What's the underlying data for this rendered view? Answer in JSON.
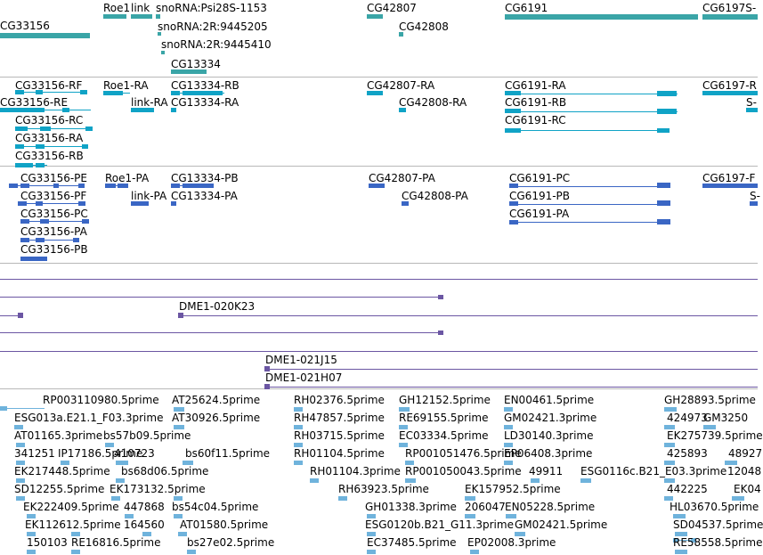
{
  "colors": {
    "gene": "#3aa5a7",
    "mrna": "#10a3c6",
    "cds": "#3a66c4",
    "clone": "#6b56a3",
    "est": "#6fb3dc",
    "separator": "#b8b8b8"
  },
  "tracks": [
    {
      "id": "genes",
      "colorKey": "gene",
      "items": [
        {
          "label": "CG33156"
        },
        {
          "label": "Roe1"
        },
        {
          "label": "link"
        },
        {
          "label": "snoRNA:Psi28S-1153"
        },
        {
          "label": "snoRNA:2R:9445205"
        },
        {
          "label": "snoRNA:2R:9445410"
        },
        {
          "label": "CG13334"
        },
        {
          "label": "CG42807"
        },
        {
          "label": "CG42808"
        },
        {
          "label": "CG6191"
        },
        {
          "label": "CG6197S-"
        }
      ]
    },
    {
      "id": "transcripts",
      "colorKey": "mrna",
      "items": [
        {
          "label": "CG33156-RF"
        },
        {
          "label": "CG33156-RE"
        },
        {
          "label": "CG33156-RC"
        },
        {
          "label": "CG33156-RA"
        },
        {
          "label": "CG33156-RB"
        },
        {
          "label": "Roe1-RA"
        },
        {
          "label": "link-RA"
        },
        {
          "label": "CG13334-RB"
        },
        {
          "label": "CG13334-RA"
        },
        {
          "label": "CG42807-RA"
        },
        {
          "label": "CG42808-RA"
        },
        {
          "label": "CG6191-RA"
        },
        {
          "label": "CG6191-RB"
        },
        {
          "label": "CG6191-RC"
        },
        {
          "label": "CG6197-R"
        },
        {
          "label": "S-"
        }
      ]
    },
    {
      "id": "proteins",
      "colorKey": "cds",
      "items": [
        {
          "label": "CG33156-PE"
        },
        {
          "label": "CG33156-PF"
        },
        {
          "label": "CG33156-PC"
        },
        {
          "label": "CG33156-PA"
        },
        {
          "label": "CG33156-PB"
        },
        {
          "label": "Roe1-PA"
        },
        {
          "label": "link-PA"
        },
        {
          "label": "CG13334-PB"
        },
        {
          "label": "CG13334-PA"
        },
        {
          "label": "CG42807-PA"
        },
        {
          "label": "CG42808-PA"
        },
        {
          "label": "CG6191-PC"
        },
        {
          "label": "CG6191-PB"
        },
        {
          "label": "CG6191-PA"
        },
        {
          "label": "CG6197-F"
        },
        {
          "label": "S-"
        }
      ]
    },
    {
      "id": "clones",
      "colorKey": "clone",
      "items": [
        {
          "label": "DME1-020K23"
        },
        {
          "label": "DME1-021J15"
        },
        {
          "label": "DME1-021H07"
        }
      ]
    },
    {
      "id": "ests",
      "colorKey": "est",
      "items": [
        {
          "label": "RP003110980.5prime"
        },
        {
          "label": "AT25624.5prime"
        },
        {
          "label": "RH02376.5prime"
        },
        {
          "label": "GH12152.5prime"
        },
        {
          "label": "EN00461.5prime"
        },
        {
          "label": "GH28893.5prime"
        },
        {
          "label": "ESG013a.E21.1_F03.3prime"
        },
        {
          "label": "AT30926.5prime"
        },
        {
          "label": "RH47857.5prime"
        },
        {
          "label": "RE69155.5prime"
        },
        {
          "label": "GM02421.3prime"
        },
        {
          "label": "424973"
        },
        {
          "label": "GM3250"
        },
        {
          "label": "AT01165.3prime"
        },
        {
          "label": "bs57b09.5prime"
        },
        {
          "label": "RH03715.5prime"
        },
        {
          "label": "EC03334.5prime"
        },
        {
          "label": "LD30140.3prime"
        },
        {
          "label": "EK275739.5prime"
        },
        {
          "label": "341251"
        },
        {
          "label": "IP17186.5prime"
        },
        {
          "label": "410723"
        },
        {
          "label": "bs60f11.5prime"
        },
        {
          "label": "RH01104.5prime"
        },
        {
          "label": "RP001051476.5prime"
        },
        {
          "label": "EP06408.3prime"
        },
        {
          "label": "425893"
        },
        {
          "label": "48927"
        },
        {
          "label": "EK217448.5prime"
        },
        {
          "label": "bs68d06.5prime"
        },
        {
          "label": "RH01104.3prime"
        },
        {
          "label": "RP001050043.5prime"
        },
        {
          "label": "49911"
        },
        {
          "label": "ESG0116c.B21_E03.3prime"
        },
        {
          "label": "12048"
        },
        {
          "label": "SD12255.5prime"
        },
        {
          "label": "EK173132.5prime"
        },
        {
          "label": "RH63923.5prime"
        },
        {
          "label": "EK157952.5prime"
        },
        {
          "label": "442225"
        },
        {
          "label": "EK04"
        },
        {
          "label": "EK222409.5prime"
        },
        {
          "label": "447868"
        },
        {
          "label": "bs54c04.5prime"
        },
        {
          "label": "GH01338.3prime"
        },
        {
          "label": "206047"
        },
        {
          "label": "EN05228.5prime"
        },
        {
          "label": "HL03670.5prime"
        },
        {
          "label": "EK112612.5prime"
        },
        {
          "label": "164560"
        },
        {
          "label": "AT01580.5prime"
        },
        {
          "label": "ESG0120b.B21_G11.3prime"
        },
        {
          "label": "GM02421.5prime"
        },
        {
          "label": "SD04537.5prime"
        },
        {
          "label": "150103"
        },
        {
          "label": "RE16816.5prime"
        },
        {
          "label": "bs27e02.5prime"
        },
        {
          "label": "EC37485.5prime"
        },
        {
          "label": "EP02008.3prime"
        },
        {
          "label": "RE58558.5prime"
        }
      ]
    }
  ]
}
